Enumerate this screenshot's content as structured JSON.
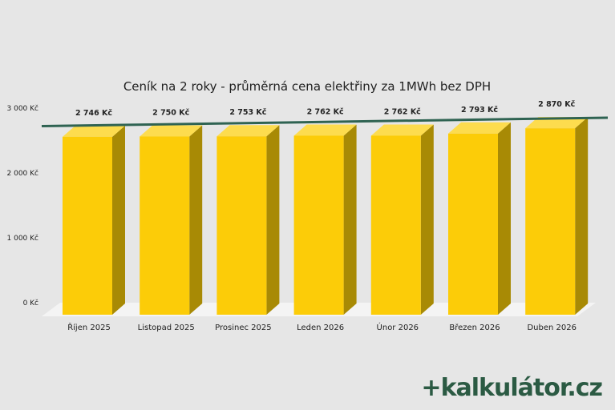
{
  "chart_data": {
    "type": "bar",
    "title": "Ceník na 2 roky - průměrná cena elektřiny za 1MWh bez DPH",
    "categories": [
      "Říjen 2025",
      "Listopad 2025",
      "Prosinec 2025",
      "Leden 2026",
      "Únor 2026",
      "Březen 2026",
      "Duben 2026"
    ],
    "values": [
      2746,
      2750,
      2753,
      2762,
      2762,
      2793,
      2870
    ],
    "value_labels": [
      "2 746 Kč",
      "2 750 Kč",
      "2 753 Kč",
      "2 762 Kč",
      "2 762 Kč",
      "2 793 Kč",
      "2 870 Kč"
    ],
    "yticks": [
      0,
      1000,
      2000,
      3000
    ],
    "ytick_labels": [
      "0 Kč",
      "1 000 Kč",
      "2 000 Kč",
      "3 000 Kč"
    ],
    "ylim": [
      0,
      3000
    ],
    "trendline": true,
    "grid": false,
    "colors": {
      "bar_front": "#fccc08",
      "bar_side": "#a88a05",
      "bar_top": "#fddc4e",
      "floor": "#f4f4f4",
      "trend": "#2f6352",
      "text": "#222222"
    }
  },
  "brand": {
    "logo_mark": "+",
    "logo_text": "kalkulátor.cz",
    "color": "#2b5a43"
  }
}
